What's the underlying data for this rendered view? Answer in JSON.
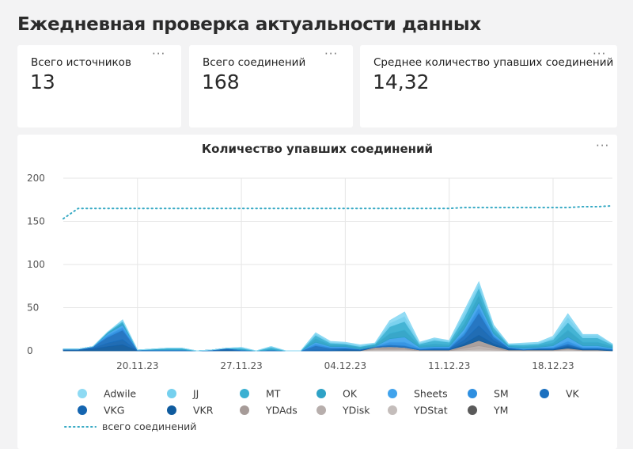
{
  "header": {
    "title": "Ежедневная проверка актуальности данных"
  },
  "kpis": [
    {
      "label": "Всего источников",
      "value": "13"
    },
    {
      "label": "Всего соединений",
      "value": "168"
    },
    {
      "label": "Среднее количество упавших соединений",
      "value": "14,32"
    }
  ],
  "menu_glyph": "···",
  "chart_data": {
    "type": "area",
    "title": "Количество упавших соединений",
    "xlabel": "",
    "ylabel": "",
    "ylim": [
      0,
      200
    ],
    "yticks": [
      0,
      50,
      100,
      150,
      200
    ],
    "x_start": "2023-11-15",
    "x_end": "2023-12-22",
    "x_tick_dates": [
      "2023-11-20",
      "2023-11-27",
      "2023-12-04",
      "2023-12-11",
      "2023-12-18"
    ],
    "x_tick_labels": [
      "20.11.23",
      "27.11.23",
      "04.12.23",
      "11.12.23",
      "18.12.23"
    ],
    "grid": true,
    "legend_position": "bottom",
    "stacked": true,
    "series": [
      {
        "name": "YM",
        "color": "#5a5a5a",
        "values": [
          0,
          0,
          0,
          0,
          0,
          0,
          0,
          0,
          0,
          0,
          0,
          0,
          0,
          0,
          0,
          0,
          0,
          0,
          0,
          0,
          0,
          0,
          0,
          0,
          0,
          0,
          0,
          0,
          0,
          0,
          0,
          0,
          0,
          0,
          0,
          0,
          0,
          0
        ]
      },
      {
        "name": "YDStat",
        "color": "#c4bdbb",
        "values": [
          0,
          0,
          0,
          0,
          0,
          0,
          0,
          0,
          0,
          0,
          0,
          0,
          0,
          0,
          0,
          0,
          0,
          0,
          0,
          0,
          0,
          1,
          1,
          1,
          0,
          0,
          0,
          1,
          2,
          1,
          0,
          0,
          0,
          0,
          1,
          0,
          0,
          0
        ]
      },
      {
        "name": "YDisk",
        "color": "#b7aeac",
        "values": [
          0,
          0,
          0,
          0,
          0,
          0,
          0,
          0,
          0,
          0,
          0,
          0,
          0,
          0,
          0,
          0,
          0,
          0,
          0,
          0,
          0,
          1,
          1,
          1,
          0,
          0,
          0,
          2,
          4,
          2,
          0,
          0,
          0,
          0,
          1,
          0,
          0,
          0
        ]
      },
      {
        "name": "YDAds",
        "color": "#a69b98",
        "values": [
          0,
          0,
          0,
          0,
          0,
          0,
          0,
          0,
          0,
          0,
          0,
          0,
          0,
          0,
          0,
          0,
          0,
          0,
          0,
          0,
          0,
          2,
          3,
          2,
          1,
          1,
          1,
          3,
          6,
          3,
          1,
          1,
          1,
          1,
          1,
          1,
          1,
          0
        ]
      },
      {
        "name": "VKR",
        "color": "#0f5b9e",
        "values": [
          1,
          1,
          2,
          5,
          7,
          0,
          0,
          0,
          0,
          0,
          0,
          1,
          0,
          0,
          0,
          0,
          0,
          0,
          0,
          1,
          1,
          0,
          0,
          0,
          0,
          0,
          0,
          2,
          6,
          2,
          1,
          0,
          1,
          1,
          2,
          1,
          1,
          1
        ]
      },
      {
        "name": "VKG",
        "color": "#1565b0",
        "values": [
          0,
          0,
          1,
          4,
          6,
          0,
          0,
          0,
          0,
          0,
          0,
          1,
          0,
          0,
          0,
          0,
          0,
          1,
          1,
          1,
          0,
          0,
          0,
          0,
          0,
          1,
          1,
          4,
          11,
          4,
          1,
          0,
          0,
          0,
          1,
          0,
          0,
          0
        ]
      },
      {
        "name": "VK",
        "color": "#1b70bf",
        "values": [
          1,
          1,
          2,
          7,
          11,
          1,
          1,
          1,
          1,
          0,
          1,
          1,
          1,
          0,
          1,
          0,
          0,
          5,
          2,
          1,
          1,
          1,
          2,
          2,
          1,
          1,
          1,
          6,
          15,
          4,
          1,
          1,
          1,
          1,
          2,
          1,
          1,
          1
        ]
      },
      {
        "name": "SM",
        "color": "#2e8fe0",
        "values": [
          0,
          0,
          0,
          2,
          3,
          0,
          0,
          0,
          0,
          0,
          0,
          0,
          0,
          0,
          0,
          0,
          0,
          2,
          1,
          1,
          0,
          0,
          3,
          4,
          1,
          1,
          1,
          3,
          6,
          2,
          0,
          0,
          0,
          1,
          3,
          1,
          1,
          0
        ]
      },
      {
        "name": "Sheets",
        "color": "#41a3ec",
        "values": [
          0,
          0,
          0,
          2,
          3,
          0,
          0,
          0,
          0,
          0,
          0,
          0,
          0,
          0,
          0,
          0,
          0,
          2,
          1,
          1,
          0,
          0,
          4,
          6,
          1,
          1,
          1,
          4,
          6,
          2,
          1,
          1,
          1,
          2,
          5,
          2,
          2,
          1
        ]
      },
      {
        "name": "OK",
        "color": "#2ea2c6",
        "values": [
          0,
          0,
          0,
          1,
          2,
          0,
          1,
          1,
          1,
          0,
          0,
          0,
          1,
          0,
          1,
          0,
          0,
          4,
          2,
          2,
          2,
          2,
          6,
          8,
          2,
          3,
          2,
          6,
          8,
          3,
          1,
          2,
          2,
          3,
          8,
          4,
          4,
          2
        ]
      },
      {
        "name": "MT",
        "color": "#3bb0d2",
        "values": [
          0,
          0,
          0,
          1,
          2,
          0,
          0,
          1,
          1,
          0,
          0,
          0,
          1,
          0,
          2,
          0,
          0,
          4,
          2,
          1,
          1,
          1,
          8,
          10,
          2,
          4,
          3,
          7,
          9,
          4,
          1,
          2,
          2,
          4,
          9,
          5,
          5,
          2
        ]
      },
      {
        "name": "JJ",
        "color": "#75d0ee",
        "values": [
          0,
          0,
          0,
          0,
          1,
          0,
          0,
          0,
          0,
          0,
          0,
          0,
          1,
          0,
          1,
          0,
          0,
          2,
          1,
          1,
          1,
          1,
          4,
          6,
          1,
          2,
          1,
          5,
          4,
          2,
          1,
          1,
          1,
          2,
          6,
          3,
          3,
          1
        ]
      },
      {
        "name": "Adwile",
        "color": "#8edaf3",
        "values": [
          0,
          0,
          0,
          0,
          1,
          0,
          0,
          0,
          0,
          0,
          0,
          0,
          0,
          0,
          0,
          0,
          0,
          1,
          1,
          1,
          1,
          0,
          3,
          5,
          1,
          1,
          1,
          3,
          3,
          1,
          0,
          1,
          1,
          2,
          4,
          1,
          1,
          0
        ]
      }
    ],
    "total_series": {
      "name": "всего соединений",
      "color": "#36a9c4",
      "values": [
        153,
        165,
        165,
        165,
        165,
        165,
        165,
        165,
        165,
        165,
        165,
        165,
        165,
        165,
        165,
        165,
        165,
        165,
        165,
        165,
        165,
        165,
        165,
        165,
        165,
        165,
        165,
        166,
        166,
        166,
        166,
        166,
        166,
        166,
        166,
        167,
        167,
        168
      ]
    },
    "legend_order": [
      "Adwile",
      "JJ",
      "MT",
      "OK",
      "Sheets",
      "SM",
      "VK",
      "VKG",
      "VKR",
      "YDAds",
      "YDisk",
      "YDStat",
      "YM"
    ]
  }
}
